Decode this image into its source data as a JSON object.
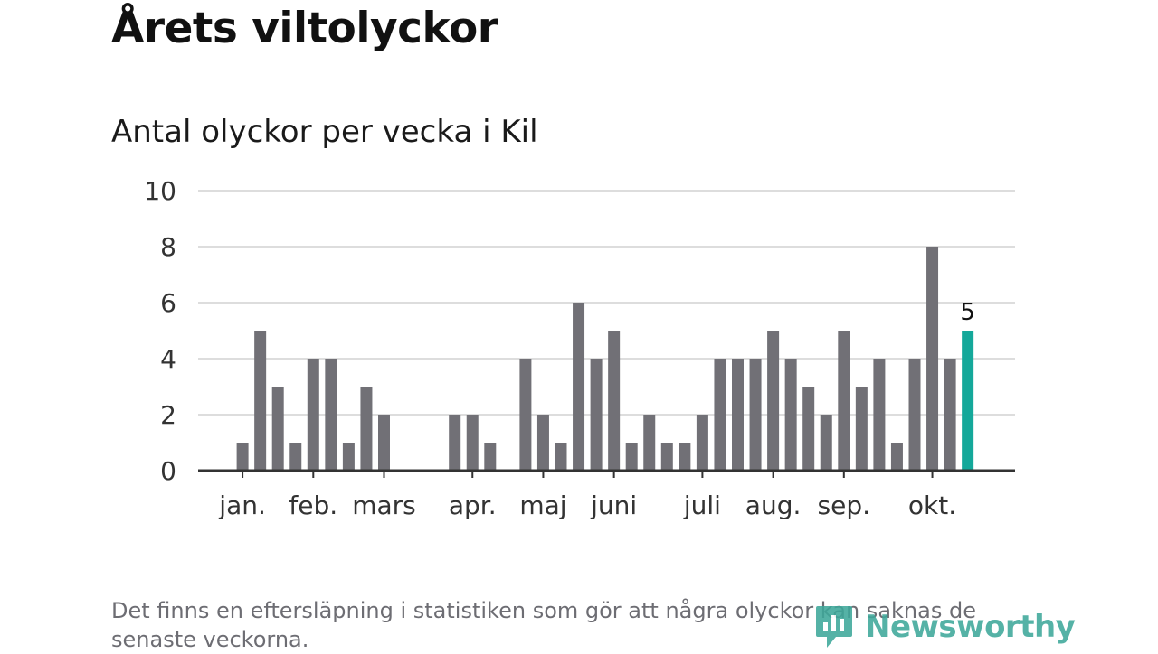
{
  "title": "Årets viltolyckor",
  "subtitle": "Antal olyckor per vecka i Kil",
  "footnote": "Det finns en eftersläpning i statistiken som gör att några olyckor kan saknas de senaste veckorna.",
  "logo": {
    "text": "Newsworthy",
    "color": "#3ea89a"
  },
  "colors": {
    "bar": "#717076",
    "highlight": "#14a89a",
    "grid": "#dddddd",
    "axis": "#333333",
    "text": "#333333"
  },
  "chart_data": {
    "type": "bar",
    "title": "Antal olyckor per vecka i Kil",
    "xlabel": "",
    "ylabel": "",
    "ylim": [
      0,
      10
    ],
    "yticks": [
      0,
      2,
      4,
      6,
      8,
      10
    ],
    "grid": true,
    "weeks": [
      1,
      2,
      3,
      4,
      5,
      6,
      7,
      8,
      9,
      10,
      11,
      12,
      13,
      14,
      15,
      16,
      17,
      18,
      19,
      20,
      21,
      22,
      23,
      24,
      25,
      26,
      27,
      28,
      29,
      30,
      31,
      32,
      33,
      34,
      35,
      36,
      37,
      38,
      39,
      40,
      41,
      42,
      43,
      44,
      45
    ],
    "values": [
      0,
      0,
      1,
      5,
      3,
      1,
      4,
      4,
      1,
      3,
      2,
      0,
      0,
      0,
      2,
      2,
      1,
      0,
      4,
      2,
      1,
      6,
      4,
      5,
      1,
      2,
      1,
      1,
      2,
      4,
      4,
      4,
      5,
      4,
      3,
      2,
      5,
      3,
      4,
      1,
      4,
      8,
      4,
      5,
      0
    ],
    "highlight": {
      "week": 44,
      "value": 5,
      "label": "5"
    },
    "month_labels": [
      {
        "label": "jan.",
        "week": 3
      },
      {
        "label": "feb.",
        "week": 7
      },
      {
        "label": "mars",
        "week": 11
      },
      {
        "label": "apr.",
        "week": 16
      },
      {
        "label": "maj",
        "week": 20
      },
      {
        "label": "juni",
        "week": 24
      },
      {
        "label": "juli",
        "week": 29
      },
      {
        "label": "aug.",
        "week": 33
      },
      {
        "label": "sep.",
        "week": 37
      },
      {
        "label": "okt.",
        "week": 42
      }
    ]
  }
}
